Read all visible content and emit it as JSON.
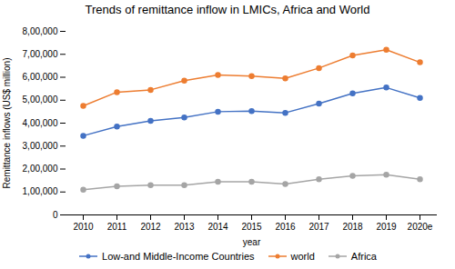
{
  "chart_data": {
    "type": "line",
    "title": "Trends of remittance inflow in LMICs, Africa and World",
    "xlabel": "year",
    "ylabel": "Remittance inflows (US$ million)",
    "categories": [
      "2010",
      "2011",
      "2012",
      "2013",
      "2014",
      "2015",
      "2016",
      "2017",
      "2018",
      "2019",
      "2020e"
    ],
    "series": [
      {
        "name": "Low-and Middle-Income Countries",
        "color": "#4472C4",
        "marker": "circle",
        "line_style": "solid",
        "values": [
          345000,
          385000,
          410000,
          425000,
          450000,
          452000,
          445000,
          485000,
          530000,
          555000,
          510000
        ]
      },
      {
        "name": "world",
        "color": "#ED7D31",
        "marker": "circle",
        "line_style": "solid",
        "values": [
          475000,
          535000,
          545000,
          585000,
          610000,
          605000,
          595000,
          640000,
          695000,
          720000,
          665000
        ]
      },
      {
        "name": "Africa",
        "color": "#A5A5A5",
        "marker": "circle",
        "line_style": "solid",
        "values": [
          110000,
          125000,
          130000,
          130000,
          145000,
          145000,
          135000,
          155000,
          170000,
          175000,
          155000
        ]
      }
    ],
    "ylim": [
      0,
      800000
    ],
    "yticks": [
      0,
      {
        "value": 100000,
        "label": "1,00,000"
      },
      {
        "value": 200000,
        "label": "2,00,000"
      },
      {
        "value": 300000,
        "label": "3,00,000"
      },
      {
        "value": 400000,
        "label": "4,00,000"
      },
      {
        "value": 500000,
        "label": "5,00,000"
      },
      {
        "value": 600000,
        "label": "6,00,000"
      },
      {
        "value": 700000,
        "label": "7,00,000"
      },
      {
        "value": 800000,
        "label": "8,00,000"
      }
    ],
    "grid": false,
    "legend": "bottom"
  }
}
